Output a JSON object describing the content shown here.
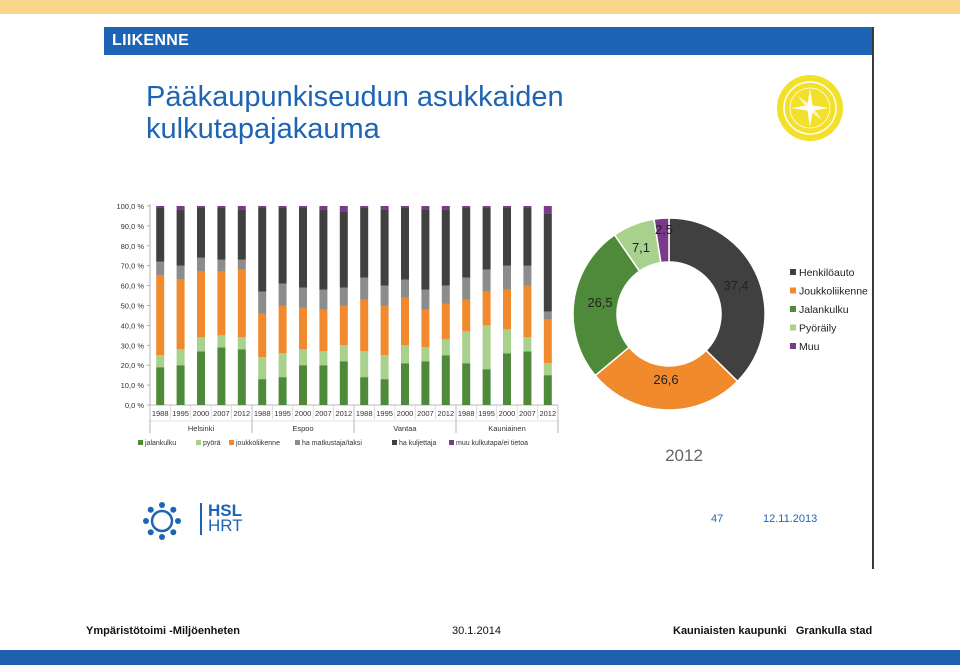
{
  "section": "LIIKENNE",
  "title": "Pääkaupunkiseudun asukkaiden kulkutapajakauma",
  "logo": {
    "line1": "HSL",
    "line2": "HRT"
  },
  "slide_number": "47",
  "slide_date": "12.11.2013",
  "footer": {
    "left": "Ympäristötoimi -Miljöenheten",
    "center": "30.1.2014",
    "right": "Kauniaisten kaupunki   Grankulla stad"
  },
  "colors": {
    "jalankulku": "#4e8a3a",
    "pyora": "#a9d18e",
    "joukkoliikenne": "#f08a2c",
    "matkustaja": "#8c8c8c",
    "kuljettaja": "#404040",
    "muu": "#7a3a8c",
    "header": "#1e64b4"
  },
  "chart_data": [
    {
      "type": "bar",
      "stacked": true,
      "ylim": [
        0,
        100
      ],
      "yticks": [
        "0,0 %",
        "10,0 %",
        "20,0 %",
        "30,0 %",
        "40,0 %",
        "50,0 %",
        "60,0 %",
        "70,0 %",
        "80,0 %",
        "90,0 %",
        "100,0 %"
      ],
      "categories": [
        "1988",
        "1995",
        "2000",
        "2007",
        "2012",
        "1988",
        "1995",
        "2000",
        "2007",
        "2012",
        "1988",
        "1995",
        "2000",
        "2007",
        "2012",
        "1988",
        "1995",
        "2000",
        "2007",
        "2012"
      ],
      "groups": [
        "Helsinki",
        "Espoo",
        "Vantaa",
        "Kauniainen"
      ],
      "series": [
        {
          "name": "jalankulku",
          "values": [
            19,
            20,
            27,
            29,
            28,
            13,
            14,
            20,
            20,
            22,
            14,
            13,
            21,
            22,
            25,
            21,
            18,
            26,
            27,
            15
          ]
        },
        {
          "name": "pyörä",
          "values": [
            6,
            8,
            7,
            6,
            6,
            11,
            12,
            8,
            7,
            8,
            13,
            12,
            9,
            7,
            8,
            16,
            22,
            12,
            7,
            6
          ]
        },
        {
          "name": "joukkoliikenne",
          "values": [
            40,
            35,
            33,
            32,
            34,
            22,
            24,
            21,
            21,
            20,
            26,
            25,
            24,
            19,
            18,
            16,
            17,
            20,
            26,
            22
          ]
        },
        {
          "name": "ha matkustaja/taksi",
          "values": [
            7,
            7,
            7,
            6,
            5,
            11,
            11,
            10,
            10,
            9,
            11,
            10,
            9,
            10,
            9,
            11,
            11,
            12,
            10,
            4
          ]
        },
        {
          "name": "ha kuljettaja",
          "values": [
            27,
            28,
            25,
            26,
            25,
            42,
            38,
            40,
            40,
            38,
            35,
            38,
            36,
            40,
            38,
            35,
            31,
            29,
            29,
            49
          ]
        },
        {
          "name": "muu kulkutapa/ei tietoa",
          "values": [
            1,
            2,
            1,
            1,
            2,
            1,
            1,
            1,
            2,
            3,
            1,
            2,
            1,
            2,
            2,
            1,
            1,
            1,
            1,
            4
          ]
        }
      ],
      "legend_position": "bottom",
      "grid": false
    },
    {
      "type": "pie",
      "donut": true,
      "year_label": "2012",
      "labels": [
        "Henkilöauto",
        "Joukkoliikenne",
        "Jalankulku",
        "Pyöräily",
        "Muu"
      ],
      "values": [
        37.4,
        26.6,
        26.5,
        7.1,
        2.5
      ],
      "value_labels": [
        "37,4",
        "26,6",
        "26,5",
        "7,1",
        "2,5"
      ],
      "legend_position": "right"
    }
  ]
}
